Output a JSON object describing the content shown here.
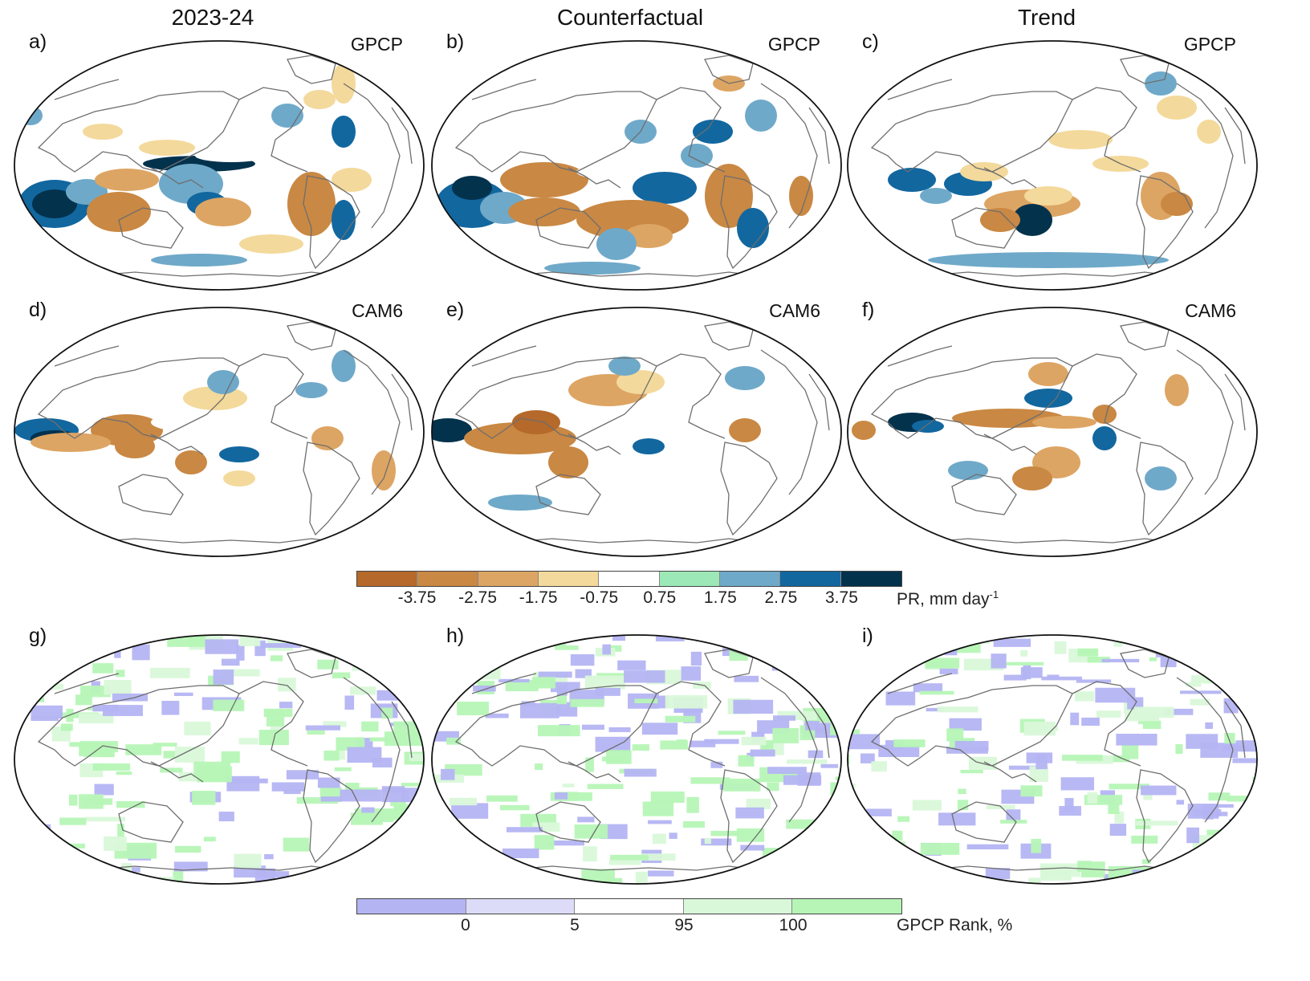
{
  "column_titles": [
    "2023-24",
    "Counterfactual",
    "Trend"
  ],
  "panels": [
    {
      "label": "a)",
      "source": "GPCP",
      "kind": "anomaly"
    },
    {
      "label": "b)",
      "source": "GPCP",
      "kind": "anomaly"
    },
    {
      "label": "c)",
      "source": "GPCP",
      "kind": "anomaly"
    },
    {
      "label": "d)",
      "source": "CAM6",
      "kind": "anomaly"
    },
    {
      "label": "e)",
      "source": "CAM6",
      "kind": "anomaly"
    },
    {
      "label": "f)",
      "source": "CAM6",
      "kind": "anomaly"
    },
    {
      "label": "g)",
      "source": "",
      "kind": "rank"
    },
    {
      "label": "h)",
      "source": "",
      "kind": "rank"
    },
    {
      "label": "i)",
      "source": "",
      "kind": "rank"
    }
  ],
  "colorbar_pr": {
    "title": "PR, mm day",
    "title_sup": "-1",
    "ticks": [
      "-3.75",
      "-2.75",
      "-1.75",
      "-0.75",
      "0.75",
      "1.75",
      "2.75",
      "3.75"
    ],
    "colors": [
      "#b5692a",
      "#c98843",
      "#dda563",
      "#f3d99b",
      "#ffffff",
      "#9ce8b6",
      "#6fa9c9",
      "#12679f",
      "#03324d"
    ]
  },
  "colorbar_rank": {
    "title": "GPCP Rank, %",
    "ticks": [
      "0",
      "5",
      "95",
      "100"
    ],
    "colors": [
      "#b4b4f3",
      "#dcdcf8",
      "#ffffff",
      "#d9f8d9",
      "#b6f5b6"
    ]
  }
}
